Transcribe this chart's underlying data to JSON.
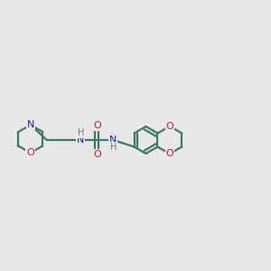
{
  "bg_color": "#e8e8e8",
  "bond_color": "#3d7a65",
  "N_color": "#1a1acc",
  "O_color": "#cc1a1a",
  "H_color": "#7a7a7a",
  "line_width": 1.6,
  "figsize": [
    3.0,
    3.0
  ],
  "dpi": 100,
  "xlim": [
    0,
    12
  ],
  "ylim": [
    2,
    8
  ]
}
